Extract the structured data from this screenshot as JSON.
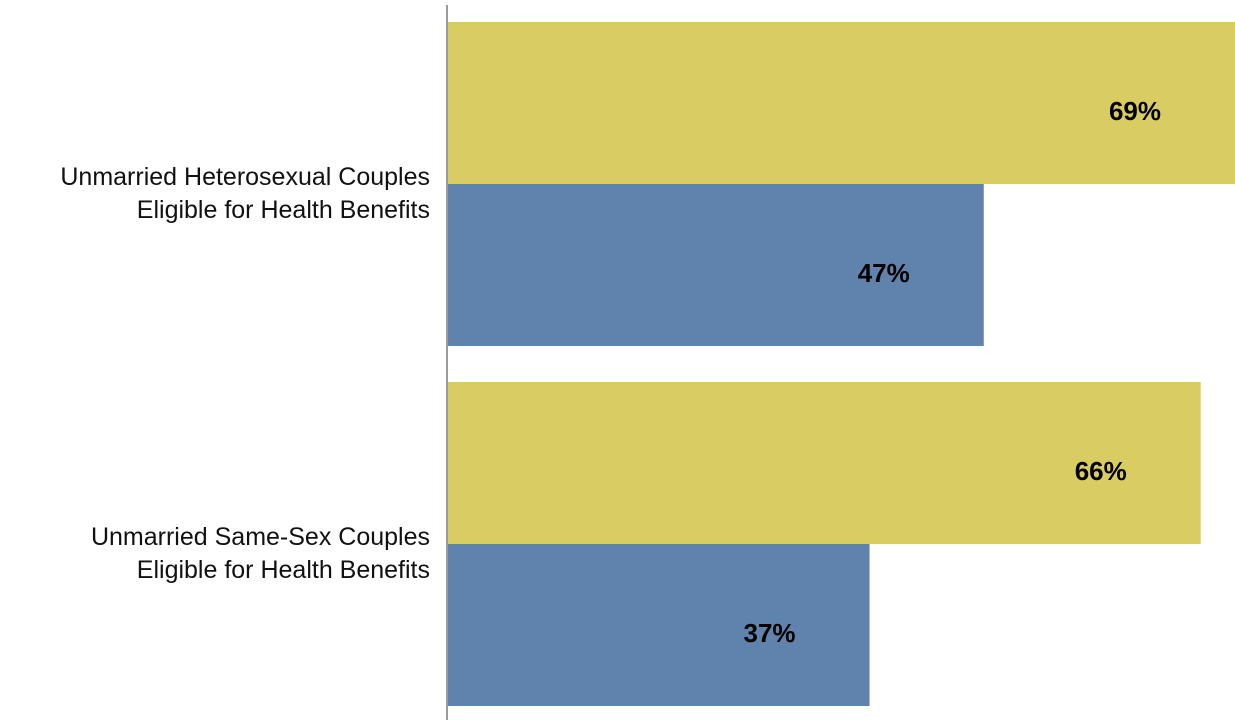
{
  "chart_data": {
    "type": "barh",
    "categories": [
      "Unmarried Heterosexual Couples Eligible for Health Benefits",
      "Unmarried Same-Sex Couples Eligible for Health Benefits"
    ],
    "series": [
      {
        "color": "#d9cc62",
        "values": [
          69,
          66
        ],
        "value_labels": [
          "69%",
          "66%"
        ]
      },
      {
        "color": "#5f83ad",
        "values": [
          47,
          37
        ],
        "value_labels": [
          "47%",
          "37%"
        ]
      }
    ],
    "xlim": [
      0,
      69
    ]
  }
}
